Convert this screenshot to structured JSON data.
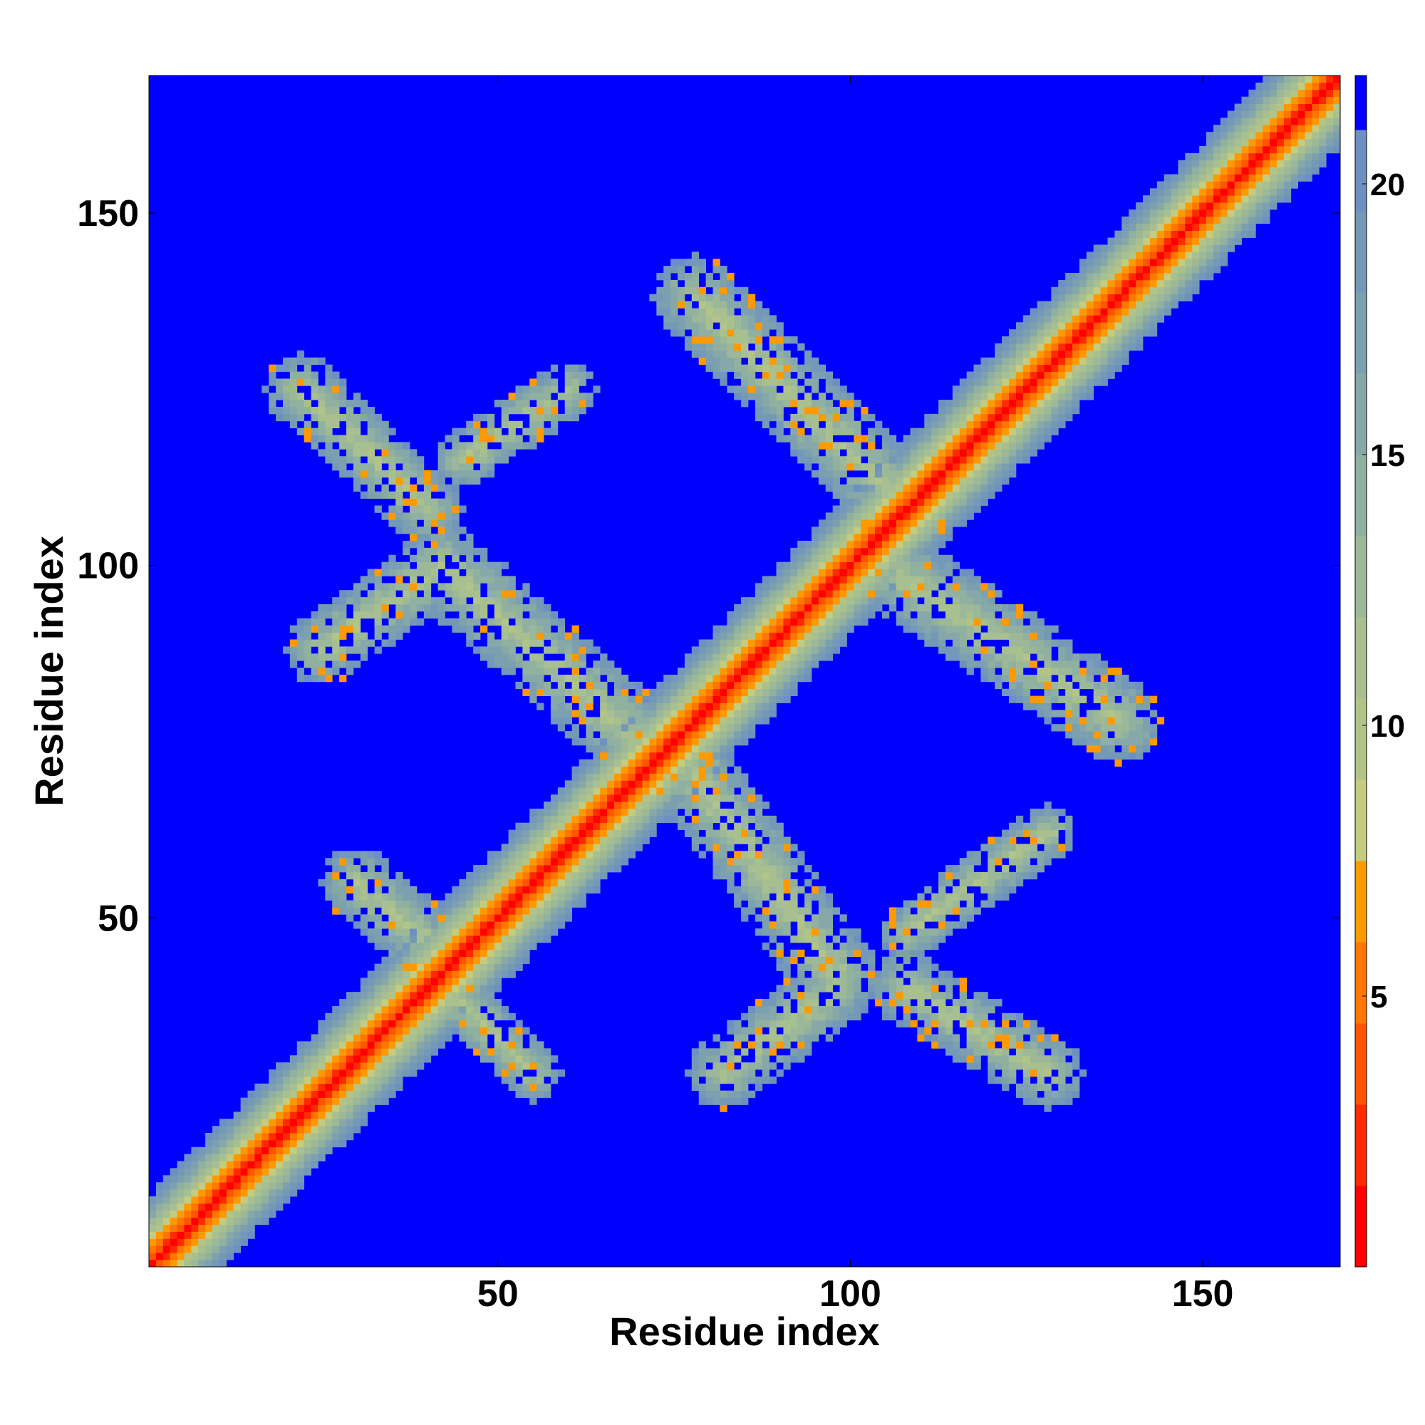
{
  "chart_data": {
    "type": "heatmap",
    "title": "",
    "xlabel": "Residue index",
    "ylabel": "Residue index",
    "n_residues": 169,
    "xlim": [
      1,
      169
    ],
    "ylim": [
      1,
      169
    ],
    "x_ticks": [
      50,
      100,
      150
    ],
    "y_ticks": [
      50,
      100,
      150
    ],
    "colorbar": {
      "range": [
        0,
        22
      ],
      "ticks": [
        5,
        10,
        15,
        20
      ],
      "levels": [
        {
          "min": 0,
          "max": 1.5,
          "color": "#ff0000"
        },
        {
          "min": 1.5,
          "max": 3,
          "color": "#ff2a00"
        },
        {
          "min": 3,
          "max": 4.5,
          "color": "#ff5500"
        },
        {
          "min": 4.5,
          "max": 6,
          "color": "#ff7700"
        },
        {
          "min": 6,
          "max": 7.5,
          "color": "#ff9900"
        },
        {
          "min": 7.5,
          "max": 9,
          "color": "#c4cc80"
        },
        {
          "min": 9,
          "max": 10.5,
          "color": "#b3c488"
        },
        {
          "min": 10.5,
          "max": 12,
          "color": "#a8c090"
        },
        {
          "min": 12,
          "max": 13.5,
          "color": "#9cb898"
        },
        {
          "min": 13.5,
          "max": 15,
          "color": "#90b0a0"
        },
        {
          "min": 15,
          "max": 16.5,
          "color": "#86a8a8"
        },
        {
          "min": 16.5,
          "max": 18,
          "color": "#7ca0b0"
        },
        {
          "min": 18,
          "max": 19.5,
          "color": "#7498b8"
        },
        {
          "min": 19.5,
          "max": 21,
          "color": "#6c90c0"
        },
        {
          "min": 21,
          "max": 22,
          "color": "#0000ff"
        }
      ]
    },
    "background_color": "#0000ff",
    "diagonal_band_halfwidth_residues": 10,
    "contact_regions": [
      {
        "name": "upper-right arm",
        "from": [
          78,
          138
        ],
        "to": [
          108,
          108
        ],
        "halfwidth": 6
      },
      {
        "name": "lower-right arm",
        "from": [
          105,
          100
        ],
        "to": [
          138,
          78
        ],
        "halfwidth": 6
      },
      {
        "name": "lower-left arm",
        "from": [
          42,
          100
        ],
        "to": [
          70,
          75
        ],
        "halfwidth": 6
      },
      {
        "name": "upper-left arm",
        "from": [
          25,
          88
        ],
        "to": [
          42,
          100
        ],
        "halfwidth": 5
      },
      {
        "name": "middle-lower arm",
        "from": [
          78,
          70
        ],
        "to": [
          98,
          42
        ],
        "halfwidth": 6
      },
      {
        "name": "lower-middle cluster",
        "from": [
          82,
          28
        ],
        "to": [
          98,
          40
        ],
        "halfwidth": 5
      },
      {
        "name": "lower-right cluster",
        "from": [
          108,
          40
        ],
        "to": [
          128,
          28
        ],
        "halfwidth": 5
      },
      {
        "name": "left-middle cluster",
        "from": [
          30,
          55
        ],
        "to": [
          42,
          45
        ],
        "halfwidth": 5
      },
      {
        "name": "lower-left cluster",
        "from": [
          45,
          38
        ],
        "to": [
          55,
          28
        ],
        "halfwidth": 4
      },
      {
        "name": "top-left cluster",
        "from": [
          22,
          125
        ],
        "to": [
          40,
          108
        ],
        "halfwidth": 5
      },
      {
        "name": "top-middle cluster",
        "from": [
          45,
          115
        ],
        "to": [
          60,
          125
        ],
        "halfwidth": 4
      },
      {
        "name": "right sparse cluster",
        "from": [
          108,
          48
        ],
        "to": [
          128,
          62
        ],
        "halfwidth": 4
      }
    ]
  }
}
